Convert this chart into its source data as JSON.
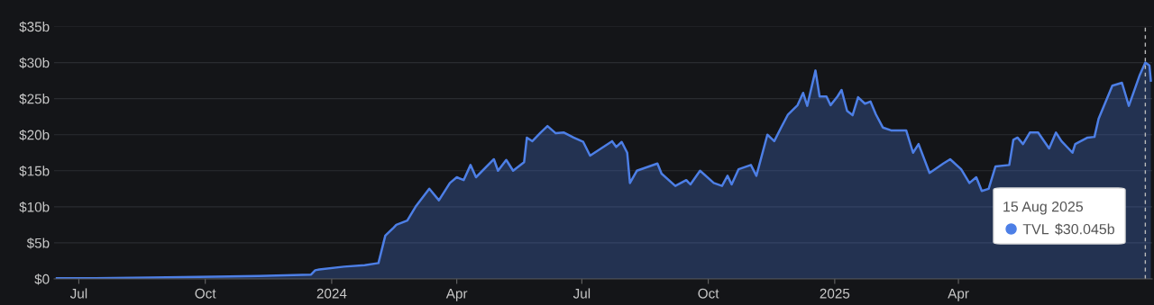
{
  "chart_data": {
    "type": "area",
    "x": [
      "2023-06-15",
      "2023-07-13",
      "2023-08-22",
      "2023-11-09",
      "2023-12-17",
      "2023-12-20",
      "2023-12-23",
      "2024-01-10",
      "2024-01-25",
      "2024-02-04",
      "2024-02-09",
      "2024-02-15",
      "2024-02-17",
      "2024-02-25",
      "2024-03-02",
      "2024-03-12",
      "2024-03-19",
      "2024-03-27",
      "2024-04-01",
      "2024-04-06",
      "2024-04-11",
      "2024-04-15",
      "2024-04-28",
      "2024-05-01",
      "2024-05-07",
      "2024-05-12",
      "2024-05-20",
      "2024-05-22",
      "2024-05-26",
      "2024-06-01",
      "2024-06-06",
      "2024-06-12",
      "2024-06-18",
      "2024-06-25",
      "2024-07-02",
      "2024-07-07",
      "2024-07-15",
      "2024-07-23",
      "2024-07-26",
      "2024-07-30",
      "2024-08-03",
      "2024-08-05",
      "2024-08-10",
      "2024-08-25",
      "2024-08-28",
      "2024-09-07",
      "2024-09-15",
      "2024-09-18",
      "2024-09-25",
      "2024-10-05",
      "2024-10-11",
      "2024-10-15",
      "2024-10-18",
      "2024-10-23",
      "2024-11-01",
      "2024-11-05",
      "2024-11-13",
      "2024-11-18",
      "2024-11-23",
      "2024-11-28",
      "2024-12-05",
      "2024-12-09",
      "2024-12-12",
      "2024-12-18",
      "2024-12-21",
      "2024-12-26",
      "2024-12-29",
      "2025-01-03",
      "2025-01-06",
      "2025-01-10",
      "2025-01-14",
      "2025-01-18",
      "2025-01-23",
      "2025-01-27",
      "2025-01-31",
      "2025-02-05",
      "2025-02-11",
      "2025-02-22",
      "2025-02-27",
      "2025-03-03",
      "2025-03-11",
      "2025-03-21",
      "2025-03-26",
      "2025-04-03",
      "2025-04-09",
      "2025-04-14",
      "2025-04-18",
      "2025-04-23",
      "2025-04-28",
      "2025-05-08",
      "2025-05-11",
      "2025-05-14",
      "2025-05-18",
      "2025-05-23",
      "2025-05-29",
      "2025-06-06",
      "2025-06-11",
      "2025-06-15",
      "2025-06-23",
      "2025-06-25",
      "2025-07-04",
      "2025-07-09",
      "2025-07-12",
      "2025-07-22",
      "2025-07-29",
      "2025-08-03",
      "2025-08-11",
      "2025-08-15",
      "2025-08-18",
      "2025-08-19"
    ],
    "series": [
      {
        "name": "TVL",
        "color": "#4d7fe6",
        "values": [
          0.1,
          0.1,
          0.2,
          0.4,
          0.6,
          1.2,
          1.3,
          1.7,
          1.9,
          2.2,
          6.0,
          7.1,
          7.5,
          8.1,
          10.0,
          12.5,
          10.9,
          13.3,
          14.1,
          13.7,
          15.8,
          14.1,
          16.6,
          15.0,
          16.5,
          15.0,
          16.2,
          19.6,
          19.1,
          20.3,
          21.2,
          20.2,
          20.3,
          19.6,
          19.0,
          17.1,
          18.1,
          19.1,
          18.3,
          19.0,
          17.5,
          13.3,
          15.0,
          16.0,
          14.6,
          12.9,
          13.7,
          13.1,
          15.0,
          13.3,
          12.9,
          14.3,
          13.1,
          15.2,
          15.8,
          14.3,
          20.0,
          19.1,
          21.0,
          22.8,
          24.1,
          25.8,
          24.0,
          28.9,
          25.3,
          25.3,
          24.1,
          25.3,
          26.2,
          23.3,
          22.7,
          25.2,
          24.3,
          24.6,
          22.8,
          21.0,
          20.6,
          20.6,
          17.5,
          18.7,
          14.7,
          16.0,
          16.6,
          15.2,
          13.3,
          14.1,
          12.2,
          12.5,
          15.6,
          15.8,
          19.3,
          19.6,
          18.7,
          20.3,
          20.3,
          18.1,
          20.3,
          19.1,
          17.5,
          18.7,
          19.6,
          19.7,
          22.2,
          26.8,
          27.2,
          24.0,
          28.3,
          30.0,
          29.6,
          27.5
        ]
      }
    ],
    "xlim": [
      "2023-06-13",
      "2025-08-20"
    ],
    "xticks": [
      {
        "value": "2023-07-01",
        "label": "Jul"
      },
      {
        "value": "2023-10-01",
        "label": "Oct"
      },
      {
        "value": "2024-01-01",
        "label": "2024"
      },
      {
        "value": "2024-04-01",
        "label": "Apr"
      },
      {
        "value": "2024-07-01",
        "label": "Jul"
      },
      {
        "value": "2024-10-01",
        "label": "Oct"
      },
      {
        "value": "2025-01-01",
        "label": "2025"
      },
      {
        "value": "2025-04-01",
        "label": "Apr"
      }
    ],
    "ylim": [
      0,
      35
    ],
    "yticks": [
      {
        "value": 0,
        "label": "$0"
      },
      {
        "value": 5,
        "label": "$5b"
      },
      {
        "value": 10,
        "label": "$10b"
      },
      {
        "value": 15,
        "label": "$15b"
      },
      {
        "value": 20,
        "label": "$20b"
      },
      {
        "value": 25,
        "label": "$25b"
      },
      {
        "value": 30,
        "label": "$30b"
      },
      {
        "value": 35,
        "label": "$35b"
      }
    ],
    "grid": "y",
    "legend": "bottom right",
    "ref_lines": [
      {
        "axis": "x",
        "value": "2025-08-15",
        "color": "#bbbbbb",
        "line_style": "dashed"
      }
    ],
    "annotations": [
      "15 Aug 2025",
      "$30.045b"
    ]
  }
}
